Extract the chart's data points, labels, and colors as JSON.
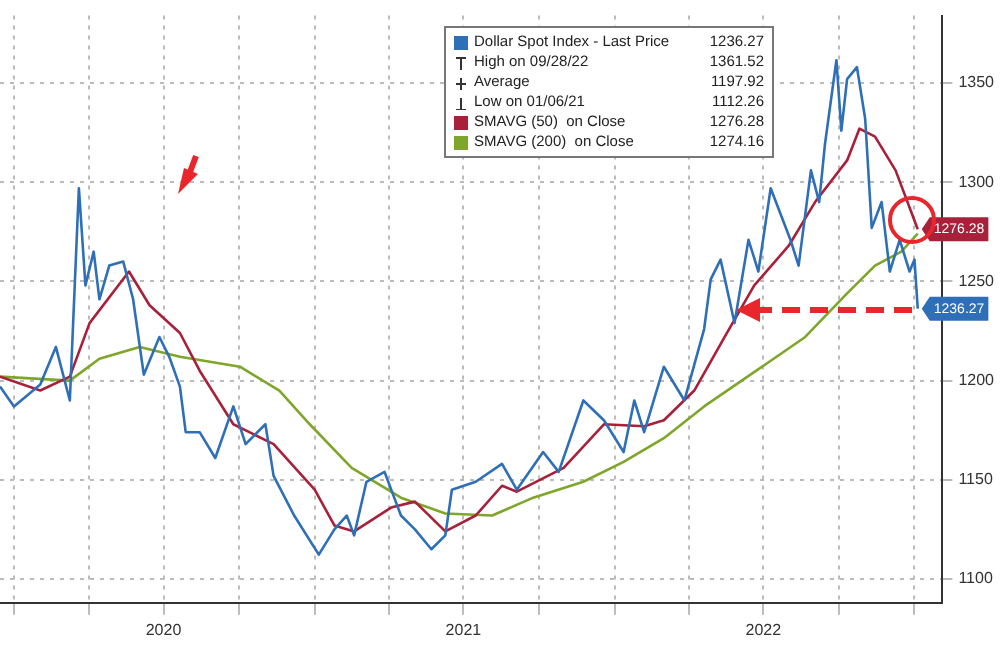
{
  "chart_data": {
    "type": "line",
    "xlim": [
      "2019-12-15",
      "2023-02-04"
    ],
    "xticks": [
      {
        "value": "2020-01-01",
        "label": null
      },
      {
        "value": "2020-04-01",
        "label": null
      },
      {
        "value": "2020-07-01",
        "label": "2020"
      },
      {
        "value": "2020-10-01",
        "label": null
      },
      {
        "value": "2021-01-01",
        "label": null
      },
      {
        "value": "2021-04-01",
        "label": null
      },
      {
        "value": "2021-07-01",
        "label": "2021"
      },
      {
        "value": "2021-10-01",
        "label": null
      },
      {
        "value": "2022-01-01",
        "label": null
      },
      {
        "value": "2022-04-01",
        "label": null
      },
      {
        "value": "2022-07-01",
        "label": "2022"
      },
      {
        "value": "2022-10-01",
        "label": null
      },
      {
        "value": "2023-01-01",
        "label": null
      }
    ],
    "ylim": [
      1088,
      1384
    ],
    "yticks": [
      1100,
      1150,
      1200,
      1250,
      1300,
      1350
    ],
    "grid": true,
    "legend": "top",
    "marker": "none",
    "line_style": "solid",
    "annotations": [
      "1236.27",
      "High on 09/28/22 1361.52",
      "Average 1197.92",
      "Low on 01/06/21 1112.26",
      "1276.28",
      "1274.16"
    ],
    "series": [
      {
        "name": "Dollar Spot Index - Last Price",
        "color": "#2f6fb8",
        "x": [
          "2019-12-15",
          "2020-01-01",
          "2020-02-02",
          "2020-02-21",
          "2020-03-09",
          "2020-03-20",
          "2020-03-28",
          "2020-04-07",
          "2020-04-14",
          "2020-04-26",
          "2020-05-13",
          "2020-05-25",
          "2020-06-07",
          "2020-06-26",
          "2020-07-08",
          "2020-07-21",
          "2020-07-28",
          "2020-08-14",
          "2020-09-02",
          "2020-09-24",
          "2020-10-09",
          "2020-11-02",
          "2020-11-12",
          "2020-12-07",
          "2021-01-06",
          "2021-01-25",
          "2021-02-09",
          "2021-02-18",
          "2021-03-05",
          "2021-03-27",
          "2021-04-16",
          "2021-05-03",
          "2021-05-23",
          "2021-06-09",
          "2021-06-17",
          "2021-07-16",
          "2021-08-17",
          "2021-09-04",
          "2021-10-06",
          "2021-10-25",
          "2021-11-24",
          "2021-12-19",
          "2022-01-12",
          "2022-01-25",
          "2022-02-06",
          "2022-03-02",
          "2022-03-27",
          "2022-04-20",
          "2022-04-28",
          "2022-05-10",
          "2022-05-27",
          "2022-06-13",
          "2022-06-25",
          "2022-07-10",
          "2022-08-03",
          "2022-08-13",
          "2022-08-28",
          "2022-09-07",
          "2022-09-14",
          "2022-09-28",
          "2022-10-04",
          "2022-10-11",
          "2022-10-23",
          "2022-11-02",
          "2022-11-10",
          "2022-11-22",
          "2022-12-02",
          "2022-12-14",
          "2022-12-26",
          "2023-01-01",
          "2023-01-05"
        ],
        "values": [
          1197,
          1187,
          1198,
          1217,
          1190,
          1297,
          1248,
          1265,
          1241,
          1258,
          1260,
          1241,
          1203,
          1222,
          1212,
          1197,
          1174,
          1174,
          1161,
          1187,
          1168,
          1178,
          1152,
          1132,
          1112.26,
          1125,
          1132,
          1122,
          1149,
          1154,
          1132,
          1125,
          1115,
          1122,
          1145,
          1149,
          1158,
          1145,
          1164,
          1154,
          1190,
          1180,
          1164,
          1190,
          1174,
          1207,
          1190,
          1226,
          1251,
          1261,
          1229,
          1271,
          1255,
          1297,
          1271,
          1258,
          1306,
          1290,
          1319,
          1361.52,
          1326,
          1352,
          1358,
          1332,
          1277,
          1290,
          1255,
          1271,
          1255,
          1261,
          1236.27
        ],
        "value_labels": [
          null,
          null,
          null,
          null,
          null,
          null,
          null,
          null,
          null,
          null,
          null,
          null,
          null,
          null,
          null,
          null,
          null,
          null,
          null,
          null,
          null,
          null,
          null,
          null,
          null,
          null,
          null,
          null,
          null,
          null,
          null,
          null,
          null,
          null,
          null,
          null,
          null,
          null,
          null,
          null,
          null,
          null,
          null,
          null,
          null,
          null,
          null,
          null,
          null,
          null,
          null,
          null,
          null,
          null,
          null,
          null,
          null,
          null,
          null,
          null,
          null,
          null,
          null,
          null,
          null,
          null,
          null,
          null,
          null,
          null,
          "1236.27"
        ]
      },
      {
        "name": "SMAVG (50)  on Close",
        "color": "#a8203a",
        "x": [
          "2019-12-15",
          "2020-02-02",
          "2020-03-09",
          "2020-04-02",
          "2020-05-20",
          "2020-06-14",
          "2020-07-21",
          "2020-08-14",
          "2020-09-24",
          "2020-11-12",
          "2021-01-01",
          "2021-01-25",
          "2021-02-18",
          "2021-04-04",
          "2021-05-03",
          "2021-06-09",
          "2021-07-16",
          "2021-08-17",
          "2021-09-04",
          "2021-10-31",
          "2021-12-19",
          "2022-02-06",
          "2022-03-02",
          "2022-04-08",
          "2022-05-15",
          "2022-06-20",
          "2022-08-01",
          "2022-09-02",
          "2022-10-11",
          "2022-10-26",
          "2022-11-14",
          "2022-12-09",
          "2023-01-05"
        ],
        "values": [
          1202,
          1195,
          1202,
          1229,
          1255,
          1238,
          1224,
          1205,
          1178,
          1168,
          1145,
          1127,
          1124,
          1136,
          1139,
          1124,
          1132,
          1147,
          1144,
          1156,
          1178,
          1177,
          1180,
          1195,
          1222,
          1248,
          1268,
          1290,
          1311,
          1327,
          1323,
          1306,
          1276.28
        ],
        "value_labels": [
          null,
          null,
          null,
          null,
          null,
          null,
          null,
          null,
          null,
          null,
          null,
          null,
          null,
          null,
          null,
          null,
          null,
          null,
          null,
          null,
          null,
          null,
          null,
          null,
          null,
          null,
          null,
          null,
          null,
          null,
          null,
          null,
          "1276.28"
        ]
      },
      {
        "name": "SMAVG (200)  on Close",
        "color": "#7ea62a",
        "x": [
          "2019-12-15",
          "2020-03-09",
          "2020-04-14",
          "2020-06-02",
          "2020-07-21",
          "2020-10-02",
          "2020-11-19",
          "2020-12-26",
          "2021-02-15",
          "2021-04-16",
          "2021-06-09",
          "2021-08-05",
          "2021-09-24",
          "2021-11-24",
          "2022-01-12",
          "2022-03-02",
          "2022-04-20",
          "2022-07-03",
          "2022-08-21",
          "2022-10-11",
          "2022-11-14",
          "2022-12-16",
          "2023-01-05"
        ],
        "values": [
          1202,
          1200,
          1211,
          1217,
          1212,
          1207,
          1195,
          1178,
          1156,
          1141,
          1133,
          1132,
          1141,
          1149,
          1159,
          1171,
          1187,
          1208,
          1222,
          1244,
          1258,
          1265,
          1274.16
        ]
      }
    ]
  }
}
